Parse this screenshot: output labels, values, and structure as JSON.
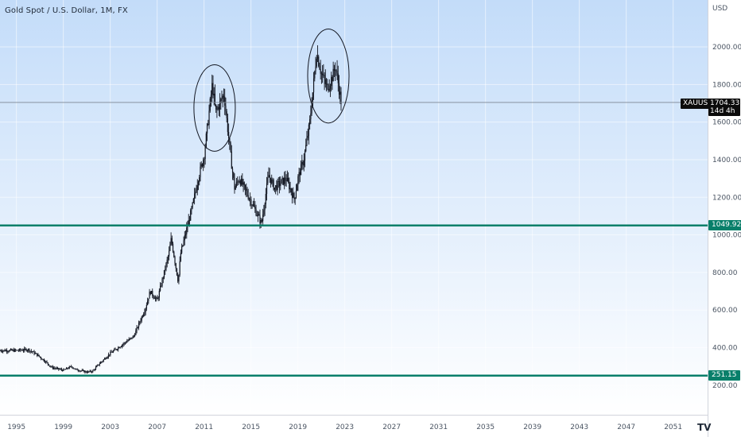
{
  "header": {
    "title": "Gold Spot / U.S. Dollar, 1M, FX",
    "unit": "USD"
  },
  "price_tags": {
    "symbol": "XAUUSD",
    "last_price": "1704.33",
    "countdown": "14d 4h",
    "support_high": "1049.92",
    "support_low": "251.15"
  },
  "logo_text": "TV",
  "colors": {
    "background_top": "#c3dcf9",
    "background_bottom": "#ffffff",
    "candle": "#131722",
    "support_line": "#087f6a",
    "last_price_line": "#7c8591",
    "price_tag_bg": "#0b0b0b",
    "grid": "#ffffff"
  },
  "chart_data": {
    "type": "candlestick",
    "title": "Gold Spot / U.S. Dollar, 1M, FX",
    "ylabel": "USD",
    "xlabel": "",
    "x_tick_labels": [
      "1995",
      "1999",
      "2003",
      "2007",
      "2011",
      "2015",
      "2019",
      "2023",
      "2027",
      "2031",
      "2035",
      "2039",
      "2043",
      "2047",
      "2051"
    ],
    "y_tick_labels": [
      "200.00",
      "400.00",
      "600.00",
      "800.00",
      "1000.00",
      "1200.00",
      "1400.00",
      "1600.00",
      "1800.00",
      "2000.00"
    ],
    "xlim": [
      1993.6,
      2054.2
    ],
    "ylim": [
      0,
      2190
    ],
    "grid": true,
    "series": [
      {
        "type": "monthly-close",
        "x": [
          1993.6,
          1995.0,
          1996.0,
          1996.7,
          1997.5,
          1998.0,
          1999.0,
          1999.7,
          2000.0,
          2001.0,
          2001.5,
          2002.0,
          2003.0,
          2004.0,
          2005.0,
          2006.0,
          2006.4,
          2007.0,
          2008.0,
          2008.2,
          2008.8,
          2009.0,
          2010.0,
          2010.5,
          2011.0,
          2011.7,
          2012.0,
          2012.7,
          2013.3,
          2013.6,
          2014.0,
          2015.0,
          2015.9,
          2016.5,
          2017.0,
          2018.0,
          2018.7,
          2019.0,
          2019.5,
          2020.0,
          2020.6,
          2021.0,
          2021.5,
          2022.0,
          2022.2,
          2022.7
        ],
        "y": [
          385,
          385,
          390,
          365,
          325,
          295,
          280,
          300,
          285,
          270,
          275,
          310,
          370,
          415,
          460,
          610,
          700,
          650,
          900,
          980,
          750,
          900,
          1150,
          1300,
          1420,
          1800,
          1650,
          1750,
          1400,
          1250,
          1300,
          1180,
          1060,
          1320,
          1250,
          1300,
          1190,
          1300,
          1400,
          1590,
          1970,
          1860,
          1780,
          1850,
          1900,
          1704
        ]
      }
    ],
    "horizontal_lines": [
      {
        "value": 1049.92,
        "label": "1049.92"
      },
      {
        "value": 251.15,
        "label": "251.15"
      }
    ],
    "last_price": {
      "value": 1704.33,
      "symbol": "XAUUSD"
    },
    "annotations": [
      {
        "type": "ellipse",
        "center": [
          2011.9,
          1675
        ],
        "radius_years": 2.1,
        "radius_usd": 230
      },
      {
        "type": "ellipse",
        "center": [
          2021.6,
          1845
        ],
        "radius_years": 2.1,
        "radius_usd": 250
      }
    ]
  }
}
